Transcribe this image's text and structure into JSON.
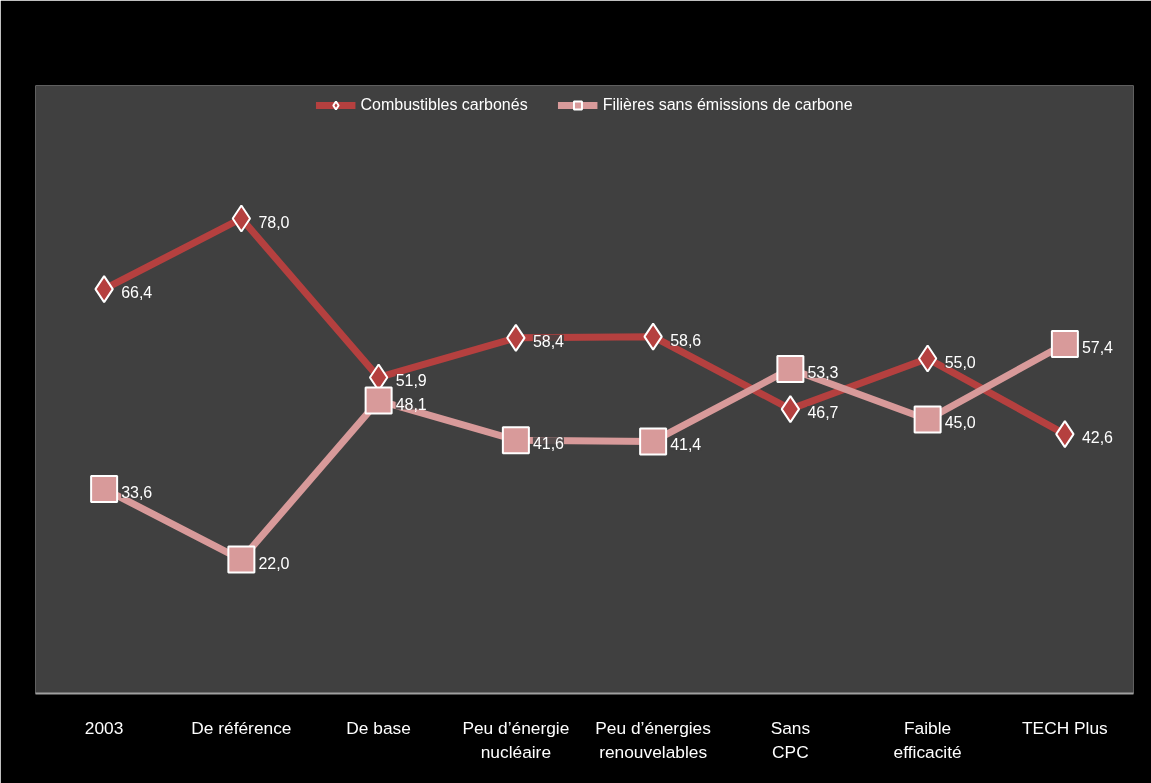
{
  "chart_data": {
    "type": "line",
    "categories": [
      "2003",
      "De référence",
      "De base",
      "Peu d’énergie\nnucléaire",
      "Peu d’énergies\nrenouvelables",
      "Sans\nCPC",
      "Faible\nefficacité",
      "TECH Plus"
    ],
    "series": [
      {
        "name": "Combustibles carbonés",
        "color": "#b5403f",
        "marker": "diamond",
        "values": [
          66.4,
          78.0,
          51.9,
          58.4,
          58.6,
          46.7,
          55.0,
          42.6
        ],
        "value_labels": [
          "66,4",
          "78,0",
          "51,9",
          "58,4",
          "58,6",
          "46,7",
          "55,0",
          "42,6"
        ]
      },
      {
        "name": "Filières sans émissions de carbone",
        "color": "#d89a9a",
        "marker": "square",
        "values": [
          33.6,
          22.0,
          48.1,
          41.6,
          41.4,
          53.3,
          45.0,
          57.4
        ],
        "value_labels": [
          "33,6",
          "22,0",
          "48,1",
          "41,6",
          "41,4",
          "53,3",
          "45,0",
          "57,4"
        ]
      }
    ],
    "legend": "top",
    "grid": false,
    "line_style": "solid"
  }
}
